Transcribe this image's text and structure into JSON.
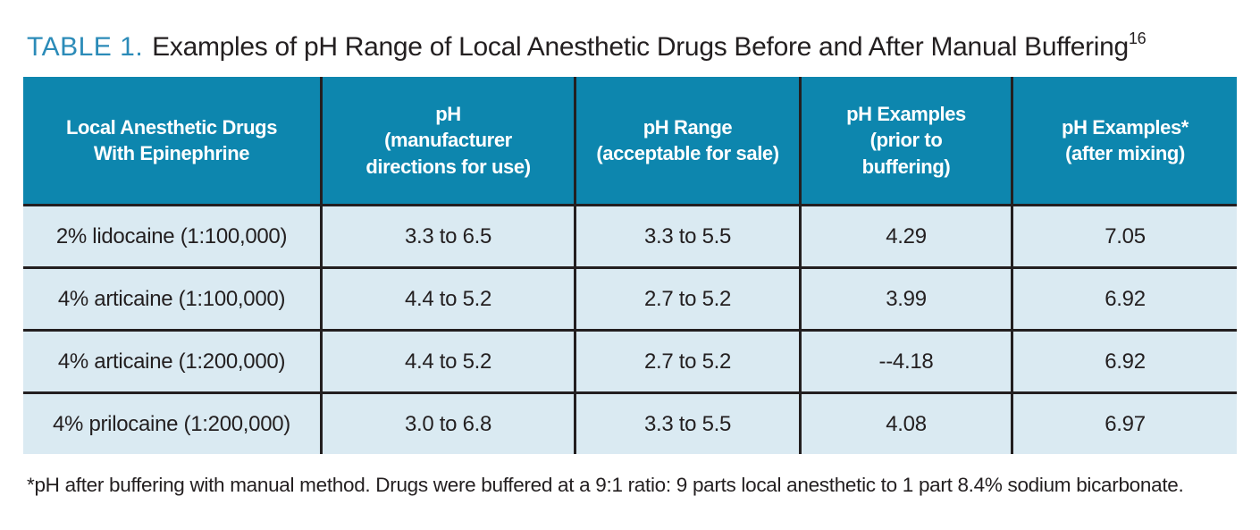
{
  "title": {
    "label": "TABLE 1.",
    "text": "Examples of pH Range of Local Anesthetic Drugs Before and After Manual Buffering",
    "superscript": "16"
  },
  "table": {
    "headers": [
      "Local Anesthetic Drugs\nWith Epinephrine",
      "pH\n(manufacturer\ndirections for use)",
      "pH Range\n(acceptable for sale)",
      "pH Examples\n(prior to\nbuffering)",
      "pH Examples*\n(after mixing)"
    ],
    "rows": [
      {
        "cells": [
          "2% lidocaine (1:100,000)",
          "3.3 to 6.5",
          "3.3 to 5.5",
          "4.29",
          "7.05"
        ]
      },
      {
        "cells": [
          "4% articaine (1:100,000)",
          "4.4 to 5.2",
          "2.7 to 5.2",
          "3.99",
          "6.92"
        ]
      },
      {
        "cells": [
          "4% articaine (1:200,000)",
          "4.4 to 5.2",
          "2.7 to 5.2",
          "--4.18",
          "6.92"
        ]
      },
      {
        "cells": [
          "4% prilocaine (1:200,000)",
          "3.0 to 6.8",
          "3.3 to 5.5",
          "4.08",
          "6.97"
        ]
      }
    ]
  },
  "footnote": "*pH after buffering with manual method. Drugs were buffered at a 9:1 ratio: 9 parts local anesthetic to 1 part 8.4% sodium bicarbonate.",
  "colors": {
    "header_bg": "#0d86ae",
    "row_bg": "#daeaf2",
    "title_accent": "#2b8bb8",
    "grid_line": "#231f20",
    "text": "#231f20"
  }
}
